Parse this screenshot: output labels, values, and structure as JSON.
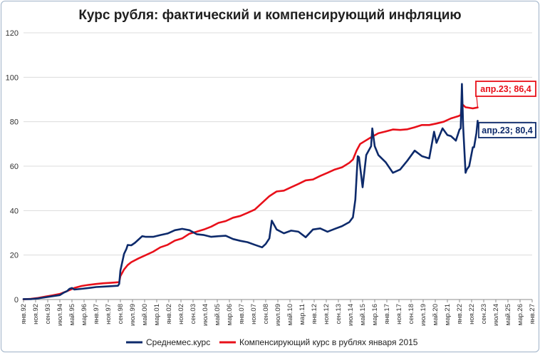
{
  "chart_data": {
    "type": "line",
    "title": "Курс рубля: фактический и компенсирующий инфляцию",
    "xlabel": "",
    "ylabel": "",
    "ylim": [
      0,
      120
    ],
    "yticks": [
      0,
      20,
      40,
      60,
      80,
      100,
      120
    ],
    "grid": true,
    "legend_position": "bottom",
    "x_range": [
      "1992-01",
      "2027-01"
    ],
    "x_tick_labels": [
      "янв.92",
      "ноя.92",
      "сен.93",
      "июл.94",
      "май.95",
      "мар.96",
      "янв.97",
      "ноя.97",
      "сен.98",
      "июл.99",
      "май.00",
      "мар.01",
      "янв.02",
      "ноя.02",
      "сен.03",
      "июл.04",
      "май.05",
      "мар.06",
      "янв.07",
      "ноя.07",
      "сен.08",
      "июл.09",
      "май.10",
      "мар.11",
      "янв.12",
      "ноя.12",
      "сен.13",
      "июл.14",
      "май.15",
      "мар.16",
      "янв.17",
      "ноя.17",
      "сен.18",
      "июл.19",
      "май.20",
      "мар.21",
      "янв.22",
      "ноя.22",
      "сен.23",
      "июл.24",
      "май.25",
      "мар.26",
      "янв.27"
    ],
    "series": [
      {
        "name": "Среднемес.курс",
        "color": "#0d2a6b",
        "points": [
          [
            "1992-01",
            0.2
          ],
          [
            "1992-07",
            0.2
          ],
          [
            "1993-01",
            0.5
          ],
          [
            "1993-07",
            1.0
          ],
          [
            "1994-01",
            1.5
          ],
          [
            "1994-07",
            2.0
          ],
          [
            "1994-10",
            3.0
          ],
          [
            "1995-01",
            3.8
          ],
          [
            "1995-03",
            4.8
          ],
          [
            "1995-05",
            5.2
          ],
          [
            "1995-07",
            4.5
          ],
          [
            "1996-01",
            4.8
          ],
          [
            "1996-07",
            5.2
          ],
          [
            "1997-01",
            5.6
          ],
          [
            "1997-07",
            5.8
          ],
          [
            "1998-01",
            6.0
          ],
          [
            "1998-07",
            6.2
          ],
          [
            "1998-08",
            7.0
          ],
          [
            "1998-09",
            13.0
          ],
          [
            "1998-10",
            15.5
          ],
          [
            "1998-12",
            20.5
          ],
          [
            "1999-02",
            22.8
          ],
          [
            "1999-03",
            24.5
          ],
          [
            "1999-06",
            24.4
          ],
          [
            "1999-09",
            25.5
          ],
          [
            "1999-12",
            27.0
          ],
          [
            "2000-03",
            28.5
          ],
          [
            "2000-06",
            28.2
          ],
          [
            "2000-12",
            28.2
          ],
          [
            "2001-06",
            29.0
          ],
          [
            "2001-12",
            29.7
          ],
          [
            "2002-06",
            31.2
          ],
          [
            "2002-12",
            31.8
          ],
          [
            "2003-06",
            31.2
          ],
          [
            "2003-12",
            29.4
          ],
          [
            "2004-06",
            29.0
          ],
          [
            "2004-12",
            28.2
          ],
          [
            "2005-06",
            28.5
          ],
          [
            "2005-12",
            28.7
          ],
          [
            "2006-06",
            27.2
          ],
          [
            "2006-12",
            26.4
          ],
          [
            "2007-06",
            25.8
          ],
          [
            "2007-12",
            24.6
          ],
          [
            "2008-06",
            23.5
          ],
          [
            "2008-09",
            25.0
          ],
          [
            "2008-12",
            27.5
          ],
          [
            "2009-02",
            35.5
          ],
          [
            "2009-03",
            34.5
          ],
          [
            "2009-06",
            31.5
          ],
          [
            "2009-12",
            29.8
          ],
          [
            "2010-06",
            31.0
          ],
          [
            "2010-12",
            30.5
          ],
          [
            "2011-06",
            28.0
          ],
          [
            "2011-12",
            31.5
          ],
          [
            "2012-06",
            32.0
          ],
          [
            "2012-12",
            30.5
          ],
          [
            "2013-06",
            31.8
          ],
          [
            "2013-12",
            33.0
          ],
          [
            "2014-06",
            34.8
          ],
          [
            "2014-09",
            37.0
          ],
          [
            "2014-11",
            45.0
          ],
          [
            "2014-12",
            55.0
          ],
          [
            "2015-01",
            64.5
          ],
          [
            "2015-02",
            64.0
          ],
          [
            "2015-05",
            50.5
          ],
          [
            "2015-08",
            65.0
          ],
          [
            "2015-12",
            69.0
          ],
          [
            "2016-01",
            77.0
          ],
          [
            "2016-03",
            69.0
          ],
          [
            "2016-06",
            65.0
          ],
          [
            "2016-12",
            61.8
          ],
          [
            "2017-06",
            57.0
          ],
          [
            "2017-12",
            58.5
          ],
          [
            "2018-06",
            62.5
          ],
          [
            "2018-12",
            67.0
          ],
          [
            "2019-06",
            64.5
          ],
          [
            "2019-12",
            63.5
          ],
          [
            "2020-04",
            75.5
          ],
          [
            "2020-06",
            70.5
          ],
          [
            "2020-11",
            77.0
          ],
          [
            "2021-03",
            74.0
          ],
          [
            "2021-06",
            73.5
          ],
          [
            "2021-10",
            71.5
          ],
          [
            "2022-01",
            76.5
          ],
          [
            "2022-02",
            77.0
          ],
          [
            "2022-03",
            97.0
          ],
          [
            "2022-04",
            78.0
          ],
          [
            "2022-06",
            57.0
          ],
          [
            "2022-07",
            58.5
          ],
          [
            "2022-09",
            60.0
          ],
          [
            "2022-12",
            68.5
          ],
          [
            "2023-01",
            68.5
          ],
          [
            "2023-03",
            75.0
          ],
          [
            "2023-04",
            80.4
          ]
        ]
      },
      {
        "name": "Компенсирующий курс в рублях января 2015",
        "color": "#e8101a",
        "points": [
          [
            "1992-01",
            0.1
          ],
          [
            "1992-07",
            0.3
          ],
          [
            "1993-01",
            0.7
          ],
          [
            "1993-07",
            1.3
          ],
          [
            "1994-01",
            1.9
          ],
          [
            "1994-07",
            2.5
          ],
          [
            "1995-01",
            3.8
          ],
          [
            "1995-07",
            5.2
          ],
          [
            "1996-01",
            6.1
          ],
          [
            "1996-07",
            6.6
          ],
          [
            "1997-01",
            7.0
          ],
          [
            "1997-07",
            7.3
          ],
          [
            "1998-01",
            7.5
          ],
          [
            "1998-08",
            7.8
          ],
          [
            "1998-09",
            10.5
          ],
          [
            "1998-12",
            13.5
          ],
          [
            "1999-03",
            15.5
          ],
          [
            "1999-06",
            16.8
          ],
          [
            "1999-12",
            18.5
          ],
          [
            "2000-06",
            20.0
          ],
          [
            "2000-12",
            21.5
          ],
          [
            "2001-06",
            23.5
          ],
          [
            "2001-12",
            24.6
          ],
          [
            "2002-06",
            26.5
          ],
          [
            "2002-12",
            27.5
          ],
          [
            "2003-06",
            29.6
          ],
          [
            "2003-12",
            30.5
          ],
          [
            "2004-06",
            31.5
          ],
          [
            "2004-12",
            32.8
          ],
          [
            "2005-06",
            34.5
          ],
          [
            "2005-12",
            35.3
          ],
          [
            "2006-06",
            36.8
          ],
          [
            "2006-12",
            37.6
          ],
          [
            "2007-06",
            39.0
          ],
          [
            "2007-12",
            40.5
          ],
          [
            "2008-06",
            43.5
          ],
          [
            "2008-12",
            46.5
          ],
          [
            "2009-06",
            48.6
          ],
          [
            "2009-12",
            49.0
          ],
          [
            "2010-06",
            50.5
          ],
          [
            "2010-12",
            52.0
          ],
          [
            "2011-06",
            53.6
          ],
          [
            "2011-12",
            54.0
          ],
          [
            "2012-06",
            55.6
          ],
          [
            "2012-12",
            57.0
          ],
          [
            "2013-06",
            58.5
          ],
          [
            "2013-12",
            59.5
          ],
          [
            "2014-06",
            61.5
          ],
          [
            "2014-09",
            63.0
          ],
          [
            "2014-12",
            67.0
          ],
          [
            "2015-03",
            70.0
          ],
          [
            "2015-06",
            71.0
          ],
          [
            "2015-12",
            73.0
          ],
          [
            "2016-06",
            74.8
          ],
          [
            "2016-12",
            75.6
          ],
          [
            "2017-06",
            76.5
          ],
          [
            "2017-12",
            76.3
          ],
          [
            "2018-06",
            76.6
          ],
          [
            "2018-12",
            77.5
          ],
          [
            "2019-06",
            78.5
          ],
          [
            "2019-12",
            78.5
          ],
          [
            "2020-06",
            79.2
          ],
          [
            "2020-12",
            80.0
          ],
          [
            "2021-06",
            81.5
          ],
          [
            "2021-12",
            82.5
          ],
          [
            "2022-02",
            83.0
          ],
          [
            "2022-03",
            88.0
          ],
          [
            "2022-06",
            86.5
          ],
          [
            "2022-12",
            86.0
          ],
          [
            "2023-04",
            86.4
          ]
        ]
      }
    ],
    "annotations": [
      {
        "series": "Компенсирующий курс в рублях января 2015",
        "text": "апр.23; 86,4",
        "color": "#e8101a"
      },
      {
        "series": "Среднемес.курс",
        "text": "апр.23; 80,4",
        "color": "#0d2a6b"
      }
    ]
  }
}
